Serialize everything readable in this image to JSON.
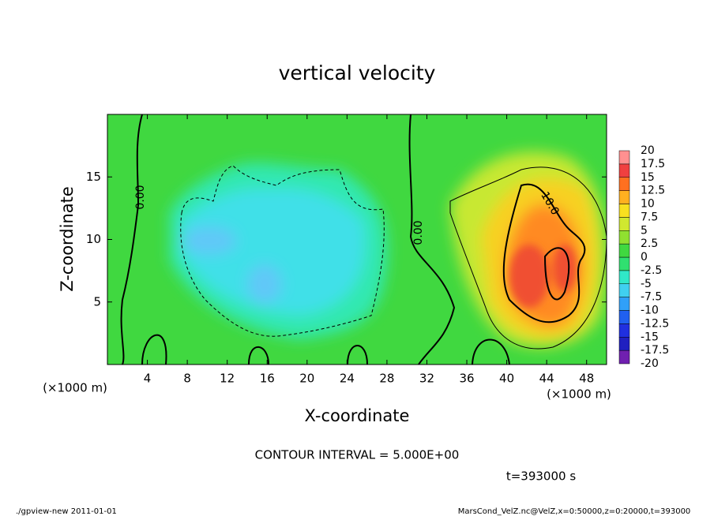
{
  "chart_data": {
    "type": "contour",
    "title": "vertical velocity",
    "xlabel": "X-coordinate",
    "ylabel": "Z-coordinate",
    "x_unit_label": "(×1000 m)",
    "xlim": [
      0,
      50
    ],
    "xticks": [
      4,
      8,
      12,
      16,
      20,
      24,
      28,
      32,
      36,
      40,
      44,
      48
    ],
    "ylim": [
      0,
      20
    ],
    "yticks": [
      5,
      10,
      15
    ],
    "contour_labels": [
      "0.00",
      "0.00",
      "10.0"
    ],
    "colorbar": {
      "levels": [
        -20,
        -17.5,
        -15,
        -12.5,
        -10,
        -7.5,
        -5,
        -2.5,
        0,
        2.5,
        5,
        7.5,
        10,
        12.5,
        15,
        17.5,
        20
      ],
      "colors": [
        "#7020b0",
        "#2020c0",
        "#2030e0",
        "#2060f0",
        "#30a0f8",
        "#40d0f0",
        "#30e8c8",
        "#30e070",
        "#40d840",
        "#90e030",
        "#d0e830",
        "#f8e020",
        "#ffb020",
        "#ff7020",
        "#f04040",
        "#ff9090"
      ]
    },
    "annotations": [
      "CONTOUR INTERVAL = 5.000E+00",
      "t=393000 s"
    ],
    "footer_left": "./gpview-new   2011-01-01",
    "footer_right": "MarsCond_VelZ.nc@VelZ,x=0:50000,z=0:20000,t=393000"
  }
}
